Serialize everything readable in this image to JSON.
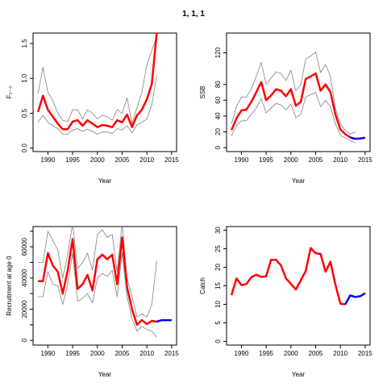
{
  "page_title": "1, 1, 1",
  "chart_data": [
    {
      "type": "line",
      "xlabel": "Year",
      "ylabel": "F₂₋₃",
      "xlim": [
        1987,
        2016
      ],
      "ylim": [
        -0.05,
        1.65
      ],
      "xticks": [
        1990,
        1995,
        2000,
        2005,
        2010,
        2015
      ],
      "yticks": [
        0.0,
        0.5,
        1.0,
        1.5
      ],
      "ytick_labels": [
        "0.0",
        "0.5",
        "1.0",
        "1.5"
      ],
      "x": [
        1988,
        1989,
        1990,
        1991,
        1992,
        1993,
        1994,
        1995,
        1996,
        1997,
        1998,
        1999,
        2000,
        2001,
        2002,
        2003,
        2004,
        2005,
        2006,
        2007,
        2008,
        2009,
        2010,
        2011,
        2012
      ],
      "series": [
        {
          "role": "upper",
          "color": "#808080",
          "values": [
            0.78,
            1.16,
            0.8,
            0.68,
            0.5,
            0.4,
            0.38,
            0.55,
            0.55,
            0.42,
            0.55,
            0.5,
            0.42,
            0.47,
            0.45,
            0.4,
            0.55,
            0.5,
            0.72,
            0.35,
            0.58,
            0.8,
            1.2,
            1.4,
            1.6
          ]
        },
        {
          "role": "estimate",
          "color": "#ff0000",
          "values": [
            0.52,
            0.75,
            0.55,
            0.45,
            0.35,
            0.27,
            0.27,
            0.38,
            0.4,
            0.32,
            0.4,
            0.35,
            0.3,
            0.33,
            0.32,
            0.3,
            0.4,
            0.37,
            0.48,
            0.3,
            0.47,
            0.55,
            0.7,
            0.92,
            1.65
          ]
        },
        {
          "role": "lower",
          "color": "#808080",
          "values": [
            0.37,
            0.47,
            0.37,
            0.32,
            0.28,
            0.2,
            0.2,
            0.26,
            0.28,
            0.24,
            0.27,
            0.24,
            0.2,
            0.23,
            0.23,
            0.21,
            0.28,
            0.26,
            0.32,
            0.22,
            0.33,
            0.37,
            0.42,
            0.62,
            1.05
          ]
        }
      ]
    },
    {
      "type": "line",
      "xlabel": "Year",
      "ylabel": "SSB",
      "xlim": [
        1987,
        2016
      ],
      "ylim": [
        -5,
        145
      ],
      "xticks": [
        1990,
        1995,
        2000,
        2005,
        2010,
        2015
      ],
      "yticks": [
        0,
        20,
        40,
        60,
        80,
        120
      ],
      "ytick_labels": [
        "0",
        "20",
        "40",
        "60",
        "80",
        "120"
      ],
      "x": [
        1988,
        1989,
        1990,
        1991,
        1992,
        1993,
        1994,
        1995,
        1996,
        1997,
        1998,
        1999,
        2000,
        2001,
        2002,
        2003,
        2004,
        2005,
        2006,
        2007,
        2008,
        2009,
        2010,
        2011,
        2012,
        2013
      ],
      "series": [
        {
          "role": "upper",
          "color": "#808080",
          "values": [
            30,
            52,
            64,
            64,
            74,
            90,
            108,
            80,
            88,
            96,
            94,
            85,
            98,
            72,
            80,
            112,
            116,
            121,
            95,
            105,
            90,
            50,
            30,
            22,
            17,
            20
          ]
        },
        {
          "role": "estimate",
          "color": "#ff0000",
          "values": [
            22,
            37,
            47,
            48,
            58,
            70,
            83,
            60,
            66,
            74,
            72,
            65,
            74,
            53,
            58,
            87,
            90,
            94,
            72,
            80,
            70,
            42,
            23,
            17,
            13,
            11
          ]
        },
        {
          "role": "lower",
          "color": "#808080",
          "values": [
            15,
            28,
            34,
            34,
            42,
            50,
            62,
            44,
            50,
            56,
            54,
            48,
            55,
            38,
            42,
            64,
            67,
            70,
            52,
            60,
            52,
            30,
            16,
            12,
            9,
            6
          ]
        },
        {
          "role": "projection",
          "color": "#0000ff",
          "x": [
            2012,
            2013,
            2014,
            2015
          ],
          "values": [
            13,
            11,
            11.5,
            12.5
          ]
        }
      ]
    },
    {
      "type": "line",
      "xlabel": "Year",
      "ylabel": "Recruitment at age 0",
      "xlim": [
        1987,
        2016
      ],
      "ylim": [
        -3000,
        73000
      ],
      "xticks": [
        1990,
        1995,
        2000,
        2005,
        2010,
        2015
      ],
      "yticks": [
        0,
        10000,
        20000,
        30000,
        40000,
        50000,
        60000,
        70000
      ],
      "ytick_labels": [
        "0",
        "",
        "20000",
        "",
        "40000",
        "",
        "60000",
        ""
      ],
      "x": [
        1988,
        1989,
        1990,
        1991,
        1992,
        1993,
        1994,
        1995,
        1996,
        1997,
        1998,
        1999,
        2000,
        2001,
        2002,
        2003,
        2004,
        2005,
        2006,
        2007,
        2008,
        2009,
        2010,
        2011,
        2012
      ],
      "series": [
        {
          "role": "upper",
          "color": "#808080",
          "values": [
            50000,
            50000,
            70000,
            64000,
            58000,
            40000,
            55000,
            75000,
            46000,
            50000,
            56000,
            45000,
            68000,
            71000,
            66000,
            68000,
            44000,
            75000,
            40000,
            28000,
            15000,
            17000,
            15000,
            23000,
            51000
          ]
        },
        {
          "role": "estimate",
          "color": "#ff0000",
          "values": [
            38000,
            38000,
            56000,
            48000,
            44000,
            30000,
            45000,
            65000,
            33000,
            36000,
            42000,
            32000,
            52000,
            55000,
            52000,
            55000,
            36000,
            66000,
            34000,
            20000,
            10000,
            13000,
            10500,
            12500,
            12000
          ]
        },
        {
          "role": "lower",
          "color": "#808080",
          "values": [
            28000,
            28000,
            44000,
            36000,
            35000,
            23000,
            36000,
            56000,
            25000,
            27000,
            30000,
            24000,
            40000,
            43000,
            41000,
            45000,
            28000,
            56000,
            28000,
            14000,
            6000,
            9000,
            7000,
            6000,
            2000
          ]
        },
        {
          "role": "projection",
          "color": "#0000ff",
          "x": [
            2012,
            2013,
            2014,
            2015
          ],
          "values": [
            12000,
            13000,
            13000,
            13000
          ]
        }
      ]
    },
    {
      "type": "line",
      "xlabel": "Year",
      "ylabel": "Catch",
      "xlim": [
        1987,
        2016
      ],
      "ylim": [
        -1,
        31
      ],
      "xticks": [
        1990,
        1995,
        2000,
        2005,
        2010,
        2015
      ],
      "yticks": [
        0,
        5,
        10,
        15,
        20,
        25,
        30
      ],
      "ytick_labels": [
        "0",
        "5",
        "10",
        "15",
        "20",
        "25",
        "30"
      ],
      "x": [
        1988,
        1989,
        1990,
        1991,
        1992,
        1993,
        1994,
        1995,
        1996,
        1997,
        1998,
        1999,
        2000,
        2001,
        2002,
        2003,
        2004,
        2005,
        2006,
        2007,
        2008,
        2009,
        2010,
        2011
      ],
      "series": [
        {
          "role": "estimate",
          "color": "#ff0000",
          "values": [
            12.5,
            17,
            15.2,
            15.5,
            17.3,
            18,
            17.4,
            17.6,
            22,
            22,
            20.5,
            17,
            15.5,
            14,
            16.5,
            19,
            25.2,
            23.8,
            23.6,
            18.8,
            21.5,
            15.3,
            10.2,
            10
          ]
        },
        {
          "role": "projection",
          "color": "#0000ff",
          "x": [
            2011,
            2012,
            2013,
            2014,
            2015
          ],
          "values": [
            10,
            12.4,
            12,
            12.2,
            13
          ]
        }
      ]
    }
  ]
}
